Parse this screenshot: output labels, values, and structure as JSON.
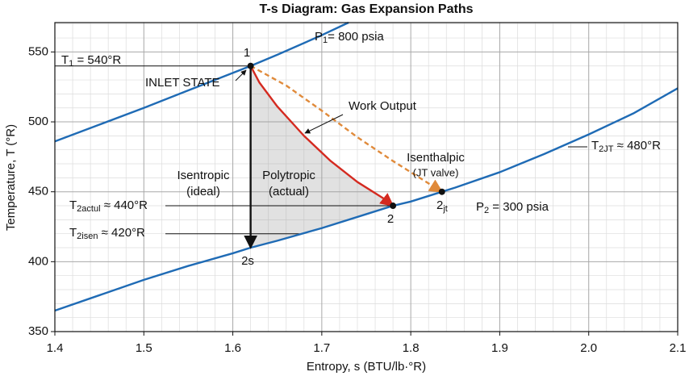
{
  "chart_data": {
    "type": "line",
    "title": "T-s Diagram: Gas Expansion Paths",
    "xlabel": "Entropy, s (BTU/lb·°R)",
    "ylabel": "Temperature, T (°R)",
    "xlim": [
      1.4,
      2.1
    ],
    "ylim": [
      350,
      571
    ],
    "xticks": [
      1.4,
      1.5,
      1.6,
      1.7,
      1.8,
      1.9,
      {
        "value": 2,
        "label": "2.0"
      },
      2.1
    ],
    "yticks": [
      350,
      400,
      450,
      500,
      550
    ],
    "grid": true,
    "series": [
      {
        "color": "#1f6bb5",
        "style": "solid",
        "x": [
          1.4,
          1.45,
          1.5,
          1.55,
          1.6,
          1.62,
          1.65,
          1.7,
          1.73
        ],
        "values": [
          486,
          498,
          510,
          522.5,
          535,
          540,
          548,
          562,
          571
        ]
      },
      {
        "color": "#1f6bb5",
        "style": "solid",
        "x": [
          1.4,
          1.45,
          1.5,
          1.55,
          1.6,
          1.62,
          1.65,
          1.7,
          1.75,
          1.78,
          1.8,
          1.835,
          1.85,
          1.9,
          1.95,
          2.0,
          2.05,
          2.1
        ],
        "values": [
          365,
          376,
          387,
          397,
          406,
          410,
          415,
          424,
          434,
          440,
          443,
          450,
          453,
          464,
          477,
          491,
          506,
          524
        ]
      },
      {
        "color": "#d42a20",
        "style": "arrow",
        "x": [
          1.62,
          1.63,
          1.65,
          1.68,
          1.71,
          1.74,
          1.77,
          1.78
        ],
        "values": [
          540,
          528,
          511,
          490,
          472,
          457,
          445,
          440
        ]
      },
      {
        "color": "#e08a3a",
        "style": "dashed-arrow",
        "x": [
          1.62,
          1.66,
          1.7,
          1.74,
          1.78,
          1.81,
          1.835
        ],
        "values": [
          540,
          526,
          508,
          489,
          472,
          460,
          450
        ]
      },
      {
        "color": "#111111",
        "style": "arrow",
        "x": [
          1.62,
          1.62
        ],
        "values": [
          540,
          410
        ]
      }
    ],
    "points": {
      "x": [
        1.62,
        1.78,
        1.835
      ],
      "values": [
        540,
        440,
        450
      ]
    },
    "reference_lines": [
      {
        "y": 540,
        "x_end": 1.62
      },
      {
        "y": 440,
        "x_end": 1.78
      },
      {
        "y": 420,
        "x_end": 1.675
      }
    ],
    "annotations": {
      "t1": {
        "main": "T",
        "sub": "1",
        "rest": " = 540°R"
      },
      "p1": {
        "main": "P",
        "sub": "1",
        "rest": "= 800 psia"
      },
      "p2": {
        "main": "P",
        "sub": "2",
        "rest": " = 300 psia"
      },
      "t2actul": {
        "main": "T",
        "sub": "2actul",
        "rest": " ≈ 440°R"
      },
      "t2isen": {
        "main": "T",
        "sub": "2isen",
        "rest": " ≈ 420°R"
      },
      "t2jt": {
        "main": "T",
        "sub": "2JT",
        "rest": " ≈ 480°R"
      },
      "state_1": "1",
      "state_2": "2",
      "state_2s": "2s",
      "state_2jt": {
        "main": "2",
        "sub": "jt"
      },
      "inlet": "INLET STATE",
      "work": "Work Output",
      "isentropic": "Isentropic",
      "ideal": "(ideal)",
      "polytropic": "Polytropic",
      "actual": "(actual)",
      "isenthalpic": "Isenthalpic",
      "jt_valve": "(JT valve)"
    }
  }
}
